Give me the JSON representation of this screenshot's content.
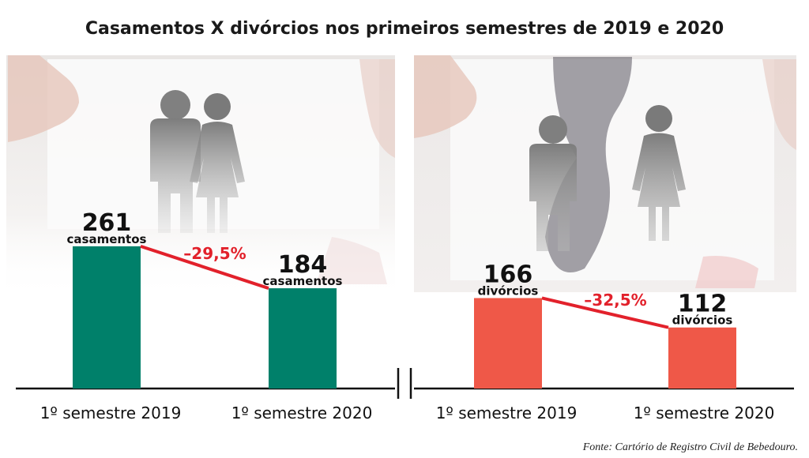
{
  "title": "Casamentos X divórcios nos primeiros semestres de 2019 e 2020",
  "source": "Fonte: Cartório de Registro Civil de Bebedouro.",
  "colors": {
    "marriage": "#00806a",
    "divorce": "#ef5848",
    "trend": "#e2212b",
    "axis": "#111111"
  },
  "icons": [
    "couple-photo-icon",
    "separated-couple-photo-icon"
  ],
  "chart_data": [
    {
      "type": "bar",
      "categories": [
        "1º semestre 2019",
        "1º semestre 2020"
      ],
      "values": [
        261,
        184
      ],
      "value_labels": [
        "261",
        "184"
      ],
      "unit": "casamentos",
      "change_label": "–29,5%",
      "color": "#00806a",
      "ylim": [
        0,
        330
      ]
    },
    {
      "type": "bar",
      "categories": [
        "1º semestre 2019",
        "1º semestre 2020"
      ],
      "values": [
        166,
        112
      ],
      "value_labels": [
        "166",
        "112"
      ],
      "unit": "divórcios",
      "change_label": "–32,5%",
      "color": "#ef5848",
      "ylim": [
        0,
        330
      ]
    }
  ]
}
